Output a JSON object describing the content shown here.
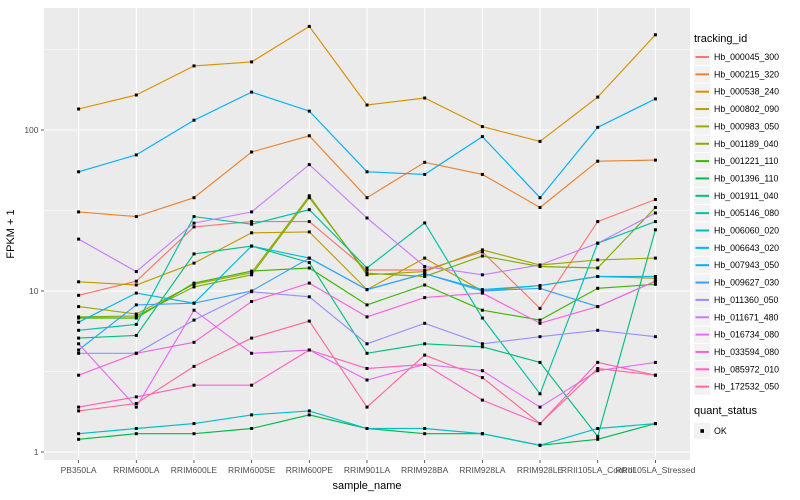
{
  "chart_data": {
    "type": "line",
    "title": "",
    "xlabel": "sample_name",
    "ylabel": "FPKM + 1",
    "yscale": "log10",
    "ylim": [
      0.9,
      560
    ],
    "y_major_ticks": [
      1,
      10,
      100
    ],
    "y_minor_gridlines": [
      3.162,
      31.62,
      316.2
    ],
    "grid": "on",
    "legend_position": "right",
    "panel_bg": "#EBEBEB",
    "grid_color": "#FFFFFF",
    "tick_color": "#333333",
    "point_marker": "black-square",
    "point_color": "#000000",
    "legend_key_bg": "#F2F2F2",
    "x_categories": [
      "PB350LA",
      "RRIM600LA",
      "RRIM600LE",
      "RRIM600SE",
      "RRIM600PE",
      "RRIM901LA",
      "RRIM928BA",
      "RRIM928LA",
      "RRIM928LE",
      "RRII105LA_Control",
      "RRII105LA_Stressed"
    ],
    "color_legend_title": "tracking_id",
    "shape_legend_title": "quant_status",
    "shape_legend_items": [
      {
        "label": "OK",
        "marker": "black-square"
      }
    ],
    "series": [
      {
        "name": "Hb_000045_300",
        "color": "#F8766D",
        "values": [
          9.4,
          11.5,
          25,
          27,
          27,
          13.5,
          13.5,
          17.5,
          7.8,
          27,
          37
        ]
      },
      {
        "name": "Hb_000215_320",
        "color": "#EA8331",
        "values": [
          31,
          29,
          38,
          73,
          92,
          38,
          63,
          53,
          33,
          64,
          65
        ]
      },
      {
        "name": "Hb_000538_240",
        "color": "#D89000",
        "values": [
          135,
          165,
          250,
          265,
          440,
          143,
          158,
          105,
          85,
          160,
          390
        ]
      },
      {
        "name": "Hb_000802_090",
        "color": "#C09B00",
        "values": [
          11.4,
          10.9,
          14.9,
          23,
          23.3,
          10.2,
          16,
          10,
          10.8,
          12.3,
          12
        ]
      },
      {
        "name": "Hb_000983_050",
        "color": "#A3A500",
        "values": [
          8.0,
          7.2,
          11.0,
          13,
          39,
          12.6,
          13.2,
          18,
          14.5,
          15.6,
          16
        ]
      },
      {
        "name": "Hb_001189_040",
        "color": "#7CAE00",
        "values": [
          6.9,
          7.0,
          10.6,
          12.6,
          38,
          12.9,
          12.3,
          16.5,
          14.2,
          13.9,
          33
        ]
      },
      {
        "name": "Hb_001221_110",
        "color": "#39B600",
        "values": [
          6.8,
          6.8,
          11.2,
          13.3,
          13.9,
          8.2,
          10.9,
          7.6,
          6.6,
          10.4,
          11
        ]
      },
      {
        "name": "Hb_001396_110",
        "color": "#00BB4E",
        "values": [
          1.2,
          1.3,
          1.3,
          1.4,
          1.7,
          1.4,
          1.3,
          1.3,
          1.1,
          1.2,
          1.5
        ]
      },
      {
        "name": "Hb_001911_040",
        "color": "#00BF7D",
        "values": [
          5.1,
          5.3,
          17,
          19,
          15,
          4.1,
          4.7,
          4.5,
          3.6,
          1.25,
          24
        ]
      },
      {
        "name": "Hb_005146_080",
        "color": "#00C1A3",
        "values": [
          5.7,
          6.2,
          29,
          26,
          32,
          13.9,
          26.5,
          6.8,
          2.3,
          19.8,
          27
        ]
      },
      {
        "name": "Hb_006060_020",
        "color": "#00BFC4",
        "values": [
          1.3,
          1.4,
          1.5,
          1.7,
          1.8,
          1.4,
          1.4,
          1.3,
          1.1,
          1.4,
          1.5
        ]
      },
      {
        "name": "Hb_006643_020",
        "color": "#00BAE0",
        "values": [
          6.4,
          9.7,
          8.4,
          19,
          16,
          10.2,
          12.8,
          10.2,
          10.8,
          12.3,
          12.3
        ]
      },
      {
        "name": "Hb_007943_050",
        "color": "#00B0F6",
        "values": [
          55,
          70,
          115,
          172,
          131,
          55,
          53,
          91,
          38,
          104,
          156
        ]
      },
      {
        "name": "Hb_009627_030",
        "color": "#35A2FF",
        "values": [
          4.3,
          8.2,
          8.4,
          10,
          16,
          10.2,
          12.8,
          10,
          10.4,
          8.0,
          11.5
        ]
      },
      {
        "name": "Hb_011360_050",
        "color": "#9590FF",
        "values": [
          4.1,
          4.1,
          6.6,
          9.9,
          9.2,
          4.7,
          6.3,
          4.7,
          5.2,
          5.7,
          5.2
        ]
      },
      {
        "name": "Hb_011671_480",
        "color": "#C77CFF",
        "values": [
          21,
          13.2,
          26.4,
          31,
          61,
          28.4,
          14.2,
          12.6,
          14.5,
          19.8,
          30.5
        ]
      },
      {
        "name": "Hb_016734_080",
        "color": "#E76BF3",
        "values": [
          4.7,
          1.9,
          7.6,
          4.1,
          4.3,
          2.8,
          3.5,
          3.2,
          1.9,
          3.2,
          3.6
        ]
      },
      {
        "name": "Hb_033594_080",
        "color": "#FA62DB",
        "values": [
          3.0,
          4.1,
          4.8,
          8.6,
          11.2,
          6.9,
          9.1,
          9.7,
          6.3,
          8.0,
          11.5
        ]
      },
      {
        "name": "Hb_085972_010",
        "color": "#FF62BC",
        "values": [
          1.9,
          2.2,
          2.6,
          2.6,
          4.3,
          3.3,
          3.5,
          2.1,
          1.5,
          3.6,
          3.0
        ]
      },
      {
        "name": "Hb_172532_050",
        "color": "#FF6A98",
        "values": [
          1.8,
          2.0,
          3.4,
          5.1,
          6.5,
          1.9,
          4.0,
          2.9,
          1.5,
          3.3,
          3.0
        ]
      }
    ]
  }
}
